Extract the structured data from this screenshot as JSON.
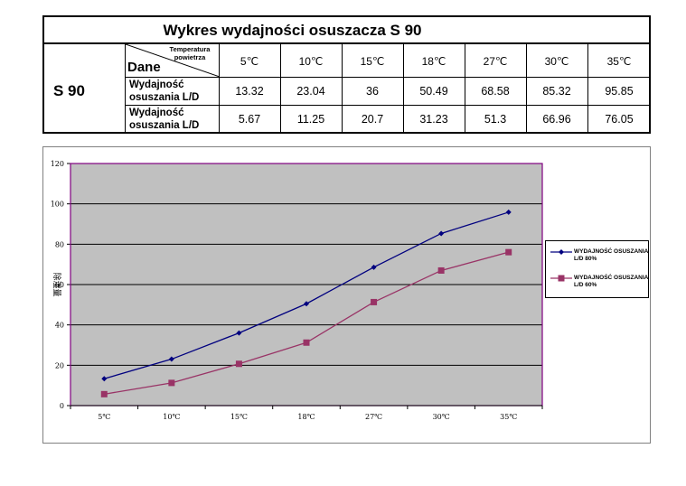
{
  "table": {
    "title": "Wykres wydajności osuszacza S 90",
    "model": "S 90",
    "header_dane": "Dane",
    "header_temperature": "Temperatura powietrza",
    "columns": [
      "5℃",
      "10℃",
      "15℃",
      "18℃",
      "27℃",
      "30℃",
      "35℃"
    ],
    "rows": [
      {
        "label": "Wydajność osuszania L/D",
        "values": [
          "13.32",
          "23.04",
          "36",
          "50.49",
          "68.58",
          "85.32",
          "95.85"
        ]
      },
      {
        "label": "Wydajność osuszania L/D",
        "values": [
          "5.67",
          "11.25",
          "20.7",
          "31.23",
          "51.3",
          "66.96",
          "76.05"
        ]
      }
    ]
  },
  "chart_data": {
    "type": "line",
    "categories": [
      "5℃",
      "10℃",
      "15℃",
      "18℃",
      "27℃",
      "30℃",
      "35℃"
    ],
    "series": [
      {
        "name": "WYDAJNOŚĆ OSUSZANIA L/D 80%",
        "values": [
          13.32,
          23.04,
          36,
          50.49,
          68.58,
          85.32,
          95.85
        ],
        "color": "#00007f",
        "marker": "diamond"
      },
      {
        "name": "WYDAJNOŚĆ OSUSZANIA L/D 60%",
        "values": [
          5.67,
          11.25,
          20.7,
          31.23,
          51.3,
          66.96,
          76.05
        ],
        "color": "#993366",
        "marker": "square"
      }
    ],
    "yticks": [
      "0",
      "20",
      "40",
      "60",
      "80",
      "100",
      "120"
    ],
    "ylim": [
      0,
      120
    ],
    "ylabel": "除湿量",
    "xlabel": "",
    "title": "",
    "grid": "horizontal",
    "legend": "right",
    "plot_background": "#c0c0c0",
    "plot_border": "#800080"
  }
}
